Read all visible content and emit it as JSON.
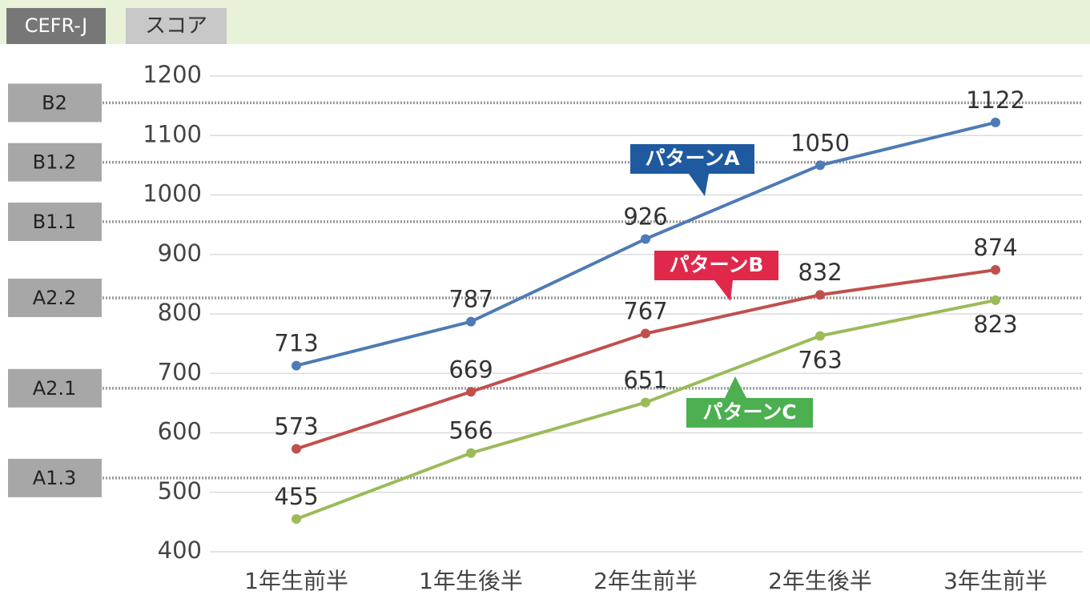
{
  "chart_data": {
    "type": "line",
    "column_headers": [
      "CEFR-J",
      "スコア"
    ],
    "categories": [
      "1年生前半",
      "1年生後半",
      "2年生前半",
      "2年生後半",
      "3年生前半"
    ],
    "series": [
      {
        "name": "パターンA",
        "color": "#4e7bb5",
        "label_color": "#1f5aa0",
        "values": [
          713,
          787,
          926,
          1050,
          1122
        ]
      },
      {
        "name": "パターンB",
        "color": "#c0504d",
        "label_color": "#e0284a",
        "values": [
          573,
          669,
          767,
          832,
          874
        ]
      },
      {
        "name": "パターンC",
        "color": "#9bbb59",
        "label_color": "#4caf50",
        "values": [
          455,
          566,
          651,
          763,
          823
        ]
      }
    ],
    "cefr_levels": [
      {
        "label": "B2",
        "value": 1155
      },
      {
        "label": "B1.2",
        "value": 1055
      },
      {
        "label": "B1.1",
        "value": 955
      },
      {
        "label": "A2.2",
        "value": 827
      },
      {
        "label": "A2.1",
        "value": 675
      },
      {
        "label": "A1.3",
        "value": 524
      }
    ],
    "ylim": [
      400,
      1200
    ],
    "yticks": [
      400,
      500,
      600,
      700,
      800,
      900,
      1000,
      1100,
      1200
    ],
    "grid": true
  }
}
